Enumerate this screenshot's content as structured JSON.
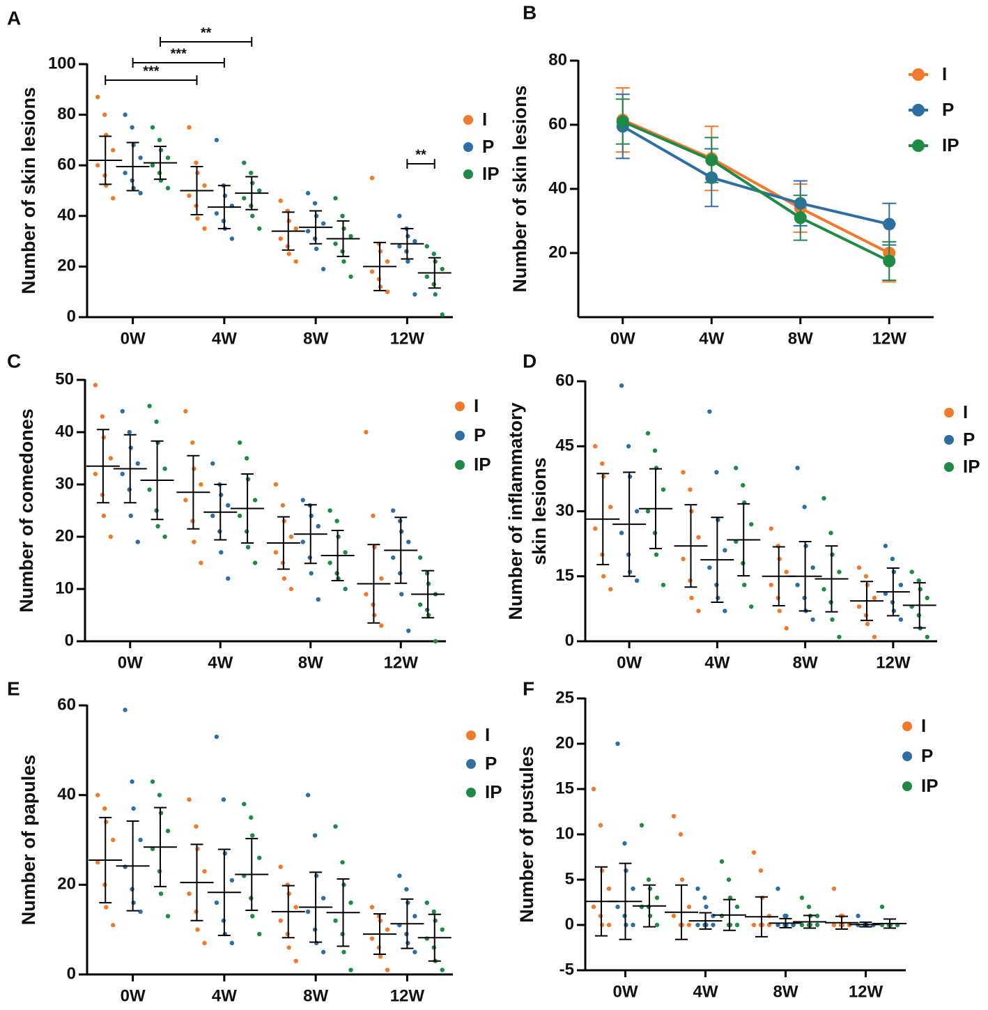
{
  "chart_data": [
    {
      "type": "strip",
      "panel": "A",
      "ylabel": [
        "Number of skin lesions"
      ],
      "categories": [
        "0W",
        "4W",
        "8W",
        "12W"
      ],
      "ylim": [
        0,
        100
      ],
      "yticks": [
        0,
        20,
        40,
        60,
        80,
        100
      ],
      "series": [
        {
          "name": "I",
          "color": "#f07a2a",
          "values": [
            62,
            50,
            34,
            20
          ],
          "errors": [
            9.5,
            9.5,
            7.5,
            9.5
          ],
          "points": [
            [
              87,
              80,
              72,
              66,
              60,
              56,
              52,
              47
            ],
            [
              75,
              61,
              57,
              52,
              48,
              44,
              39,
              35
            ],
            [
              46,
              42,
              38,
              35,
              31,
              28,
              25,
              22
            ],
            [
              55,
              29,
              26,
              22,
              18,
              15,
              12,
              10
            ]
          ]
        },
        {
          "name": "P",
          "color": "#2e6fa3",
          "values": [
            59.5,
            43.5,
            35.5,
            29
          ],
          "errors": [
            9.5,
            8.5,
            6.5,
            6
          ],
          "points": [
            [
              80,
              75,
              68,
              63,
              57,
              54,
              51,
              49
            ],
            [
              70,
              52,
              48,
              44,
              41,
              38,
              35,
              31
            ],
            [
              49,
              45,
              40,
              37,
              34,
              31,
              27,
              19
            ],
            [
              40,
              35,
              32,
              30,
              28,
              26,
              22,
              9
            ]
          ]
        },
        {
          "name": "IP",
          "color": "#1f8a46",
          "values": [
            61,
            49,
            31,
            17.5
          ],
          "errors": [
            6.5,
            6.5,
            7,
            6
          ],
          "points": [
            [
              75,
              70,
              66,
              63,
              60,
              57,
              54,
              51
            ],
            [
              61,
              57,
              53,
              50,
              47,
              44,
              40,
              35
            ],
            [
              47,
              40,
              35,
              32,
              29,
              26,
              22,
              16
            ],
            [
              28,
              25,
              22,
              19,
              16,
              13,
              9,
              1
            ]
          ]
        }
      ],
      "annotations": [
        {
          "text": "***",
          "from": [
            "0W",
            "I"
          ],
          "to": [
            "4W",
            "I"
          ]
        },
        {
          "text": "***",
          "from": [
            "0W",
            "P"
          ],
          "to": [
            "4W",
            "P"
          ]
        },
        {
          "text": "**",
          "from": [
            "0W",
            "IP"
          ],
          "to": [
            "4W",
            "IP"
          ]
        },
        {
          "text": "**",
          "from": [
            "12W",
            "P"
          ],
          "to": [
            "12W",
            "IP"
          ]
        }
      ]
    },
    {
      "type": "line",
      "panel": "B",
      "ylabel": [
        "Number of skin lesions"
      ],
      "categories": [
        "0W",
        "4W",
        "8W",
        "12W"
      ],
      "ylim": [
        0,
        80
      ],
      "yticks": [
        20,
        40,
        60,
        80
      ],
      "series": [
        {
          "name": "I",
          "color": "#f07a2a",
          "values": [
            61.5,
            49.5,
            34,
            20
          ],
          "errors": [
            10,
            10,
            7.5,
            9
          ]
        },
        {
          "name": "P",
          "color": "#2e6fa3",
          "values": [
            59.5,
            43.5,
            35.5,
            29
          ],
          "errors": [
            10,
            9,
            7,
            6.5
          ]
        },
        {
          "name": "IP",
          "color": "#1f8a46",
          "values": [
            61,
            49,
            31,
            17.5
          ],
          "errors": [
            7,
            7,
            7,
            6
          ]
        }
      ]
    },
    {
      "type": "strip",
      "panel": "C",
      "ylabel": [
        "Number of comedones"
      ],
      "categories": [
        "0W",
        "4W",
        "8W",
        "12W"
      ],
      "ylim": [
        0,
        50
      ],
      "yticks": [
        0,
        10,
        20,
        30,
        40,
        50
      ],
      "series": [
        {
          "name": "I",
          "color": "#f07a2a",
          "values": [
            33.5,
            28.5,
            18.8,
            11
          ],
          "errors": [
            7,
            7,
            5,
            7.5
          ],
          "points": [
            [
              49,
              43,
              39,
              35,
              32,
              28,
              24,
              20
            ],
            [
              44,
              38,
              33,
              30,
              27,
              23,
              19,
              15
            ],
            [
              30,
              26,
              23,
              20,
              17,
              15,
              12,
              10
            ],
            [
              40,
              24,
              18,
              12,
              9,
              7,
              5,
              3
            ]
          ]
        },
        {
          "name": "P",
          "color": "#2e6fa3",
          "values": [
            33,
            24.7,
            20.5,
            17.4
          ],
          "errors": [
            6.5,
            5.3,
            5.6,
            6.3
          ],
          "points": [
            [
              44,
              40,
              37,
              34,
              32,
              29,
              24,
              19
            ],
            [
              34,
              30,
              28,
              26,
              24,
              21,
              17,
              12
            ],
            [
              27,
              26,
              24,
              22,
              19,
              16,
              13,
              8
            ],
            [
              25,
              23,
              21,
              19,
              16,
              13,
              9,
              2
            ]
          ]
        },
        {
          "name": "IP",
          "color": "#1f8a46",
          "values": [
            30.8,
            25.4,
            16.4,
            9
          ],
          "errors": [
            7.5,
            6.6,
            4.8,
            4.5
          ],
          "points": [
            [
              45,
              42,
              38,
              33,
              29,
              25,
              22,
              20
            ],
            [
              38,
              35,
              31,
              27,
              24,
              21,
              18,
              15
            ],
            [
              25,
              23,
              20,
              17,
              15,
              13,
              12,
              10
            ],
            [
              16,
              13,
              11,
              9,
              7,
              6,
              5,
              0
            ]
          ]
        }
      ]
    },
    {
      "type": "strip",
      "panel": "D",
      "ylabel": [
        "Number of inflammatory",
        "skin lesions"
      ],
      "categories": [
        "0W",
        "4W",
        "8W",
        "12W"
      ],
      "ylim": [
        0,
        60
      ],
      "yticks": [
        0,
        15,
        30,
        45,
        60
      ],
      "series": [
        {
          "name": "I",
          "color": "#f07a2a",
          "values": [
            28.2,
            22,
            15,
            9.3
          ],
          "errors": [
            10.5,
            9.5,
            6.8,
            4.5
          ],
          "points": [
            [
              45,
              41,
              38,
              31,
              26,
              20,
              15,
              12
            ],
            [
              39,
              35,
              30,
              24,
              19,
              14,
              10,
              7
            ],
            [
              26,
              22,
              19,
              16,
              13,
              10,
              7,
              3
            ],
            [
              17,
              15,
              13,
              10,
              8,
              6,
              4,
              1
            ]
          ]
        },
        {
          "name": "P",
          "color": "#2e6fa3",
          "values": [
            27,
            18.8,
            15,
            11.4
          ],
          "errors": [
            12,
            9.8,
            8,
            5.5
          ],
          "points": [
            [
              59,
              45,
              38,
              30,
              25,
              20,
              16,
              14
            ],
            [
              53,
              39,
              28,
              21,
              17,
              13,
              10,
              7
            ],
            [
              40,
              31,
              22,
              17,
              13,
              10,
              7,
              5
            ],
            [
              22,
              19,
              16,
              13,
              11,
              9,
              7,
              5
            ]
          ]
        },
        {
          "name": "IP",
          "color": "#1f8a46",
          "values": [
            30.6,
            23.4,
            14.4,
            8.3
          ],
          "errors": [
            9.2,
            8.3,
            7.6,
            5.2
          ],
          "points": [
            [
              48,
              44,
              40,
              35,
              30,
              25,
              20,
              13
            ],
            [
              40,
              36,
              32,
              27,
              23,
              18,
              13,
              8
            ],
            [
              33,
              25,
              20,
              16,
              12,
              9,
              5,
              1
            ],
            [
              16,
              14,
              12,
              10,
              8,
              6,
              3,
              1
            ]
          ]
        }
      ]
    },
    {
      "type": "strip",
      "panel": "E",
      "ylabel": [
        "Number of  papules"
      ],
      "categories": [
        "0W",
        "4W",
        "8W",
        "12W"
      ],
      "ylim": [
        0,
        60
      ],
      "yticks": [
        0,
        20,
        40,
        60
      ],
      "series": [
        {
          "name": "I",
          "color": "#f07a2a",
          "values": [
            25.5,
            20.5,
            14,
            9
          ],
          "errors": [
            9.5,
            8.5,
            5.8,
            4.5
          ],
          "points": [
            [
              40,
              37,
              34,
              30,
              25,
              20,
              15,
              11
            ],
            [
              39,
              33,
              28,
              23,
              18,
              14,
              10,
              7
            ],
            [
              24,
              20,
              18,
              15,
              12,
              9,
              6,
              3
            ],
            [
              15,
              13,
              12,
              10,
              8,
              6,
              4,
              1
            ]
          ]
        },
        {
          "name": "P",
          "color": "#2e6fa3",
          "values": [
            24.2,
            18.3,
            15,
            11.3
          ],
          "errors": [
            10,
            9.6,
            7.8,
            5.5
          ],
          "points": [
            [
              59,
              43,
              37,
              30,
              24,
              19,
              16,
              14
            ],
            [
              53,
              39,
              27,
              21,
              16,
              12,
              9,
              7
            ],
            [
              40,
              31,
              22,
              17,
              14,
              10,
              7,
              5
            ],
            [
              22,
              19,
              16,
              13,
              11,
              9,
              7,
              5
            ]
          ]
        },
        {
          "name": "IP",
          "color": "#1f8a46",
          "values": [
            28.4,
            22.3,
            13.8,
            8.2
          ],
          "errors": [
            8.8,
            8,
            7.5,
            5.2
          ],
          "points": [
            [
              43,
              40,
              36,
              32,
              28,
              23,
              18,
              13
            ],
            [
              38,
              35,
              31,
              26,
              22,
              17,
              13,
              9
            ],
            [
              33,
              25,
              20,
              16,
              12,
              9,
              5,
              1
            ],
            [
              16,
              14,
              12,
              10,
              8,
              6,
              3,
              1
            ]
          ]
        }
      ]
    },
    {
      "type": "strip",
      "panel": "F",
      "ylabel": [
        "Number of pustules"
      ],
      "categories": [
        "0W",
        "4W",
        "8W",
        "12W"
      ],
      "ylim": [
        -5,
        25
      ],
      "yticks": [
        -5,
        0,
        5,
        10,
        15,
        20,
        25
      ],
      "series": [
        {
          "name": "I",
          "color": "#f07a2a",
          "values": [
            2.6,
            1.4,
            0.9,
            0.25
          ],
          "errors": [
            3.8,
            3,
            2.2,
            0.7
          ],
          "points": [
            [
              15,
              11,
              6,
              4,
              2,
              1,
              0,
              0
            ],
            [
              12,
              10,
              5,
              2,
              1,
              0,
              0,
              0
            ],
            [
              8,
              6,
              3,
              1,
              0,
              0,
              0,
              0
            ],
            [
              4,
              1,
              1,
              0,
              0,
              0,
              0,
              0
            ]
          ]
        },
        {
          "name": "P",
          "color": "#2e6fa3",
          "values": [
            2.6,
            0.45,
            0.2,
            0.05
          ],
          "errors": [
            4.2,
            0.9,
            0.5,
            0.25
          ],
          "points": [
            [
              20,
              9,
              6,
              4,
              2,
              1,
              0,
              0
            ],
            [
              4,
              3,
              2,
              1,
              0,
              0,
              0,
              0
            ],
            [
              4,
              1,
              1,
              0,
              0,
              0,
              0,
              0
            ],
            [
              1,
              0,
              0,
              0,
              0,
              0,
              0,
              0
            ]
          ]
        },
        {
          "name": "IP",
          "color": "#1f8a46",
          "values": [
            2.1,
            1.1,
            0.35,
            0.15
          ],
          "errors": [
            2.3,
            1.7,
            0.7,
            0.5
          ],
          "points": [
            [
              11,
              5,
              4,
              3,
              2,
              2,
              1,
              0
            ],
            [
              7,
              5,
              3,
              2,
              1,
              0,
              0,
              0
            ],
            [
              3,
              2,
              1,
              1,
              0,
              0,
              0,
              0
            ],
            [
              2,
              0,
              0,
              0,
              0,
              0,
              0,
              0
            ]
          ]
        }
      ]
    }
  ]
}
